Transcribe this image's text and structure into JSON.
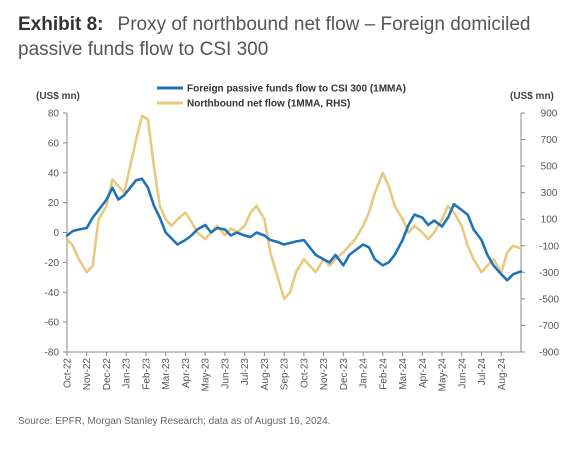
{
  "exhibit": {
    "label": "Exhibit 8:",
    "title": "Proxy of northbound net flow – Foreign domiciled passive funds flow to CSI 300"
  },
  "source": "Source: EPFR, Morgan Stanley Research; data as of August 16, 2024.",
  "colors": {
    "passive": "#1f73b7",
    "northbound": "#e8c97f",
    "axis": "#888888"
  },
  "chart_data": {
    "type": "line",
    "ylabel_left": "(US$ mn)",
    "ylabel_right": "(US$ mn)",
    "ylim_left": [
      -80,
      80
    ],
    "ylim_right": [
      -900,
      900
    ],
    "yticks_left": [
      80,
      60,
      40,
      20,
      0,
      -20,
      -40,
      -60,
      -80
    ],
    "yticks_right": [
      900,
      700,
      500,
      300,
      100,
      -100,
      -300,
      -500,
      -700,
      -900
    ],
    "xlim": [
      0,
      23
    ],
    "xticks": [
      "Oct-22",
      "Nov-22",
      "Dec-22",
      "Jan-23",
      "Feb-23",
      "Mar-23",
      "Apr-23",
      "May-23",
      "Jun-23",
      "Jul-23",
      "Aug-23",
      "Sep-23",
      "Oct-23",
      "Nov-23",
      "Dec-23",
      "Jan-24",
      "Feb-24",
      "Mar-24",
      "Apr-24",
      "May-24",
      "Jun-24",
      "Jul-24",
      "Aug-24"
    ],
    "legend": "top-center",
    "grid": false,
    "series": [
      {
        "name": "Foreign passive funds flow to CSI 300 (1MMA)",
        "axis": "left",
        "x": [
          0,
          0.3,
          0.6,
          1,
          1.3,
          1.6,
          2,
          2.3,
          2.6,
          2.9,
          3.2,
          3.5,
          3.8,
          4.1,
          4.4,
          4.7,
          5,
          5.3,
          5.6,
          6,
          6.3,
          6.6,
          7,
          7.3,
          7.6,
          8,
          8.3,
          8.6,
          9,
          9.3,
          9.6,
          10,
          10.3,
          10.6,
          11,
          11.3,
          11.6,
          12,
          12.3,
          12.6,
          13,
          13.3,
          13.6,
          14,
          14.3,
          14.6,
          15,
          15.3,
          15.6,
          16,
          16.3,
          16.6,
          17,
          17.3,
          17.6,
          18,
          18.3,
          18.6,
          19,
          19.3,
          19.6,
          20,
          20.3,
          20.6,
          21,
          21.3,
          21.6,
          22,
          22.3,
          22.6,
          23
        ],
        "values": [
          -2,
          1,
          2,
          3,
          10,
          15,
          22,
          30,
          22,
          25,
          30,
          35,
          36,
          30,
          18,
          10,
          0,
          -4,
          -8,
          -5,
          -2,
          2,
          5,
          0,
          3,
          2,
          -2,
          0,
          -2,
          -3,
          0,
          -2,
          -5,
          -6,
          -8,
          -7,
          -6,
          -5,
          -10,
          -15,
          -18,
          -20,
          -15,
          -22,
          -15,
          -12,
          -8,
          -10,
          -18,
          -22,
          -20,
          -15,
          -5,
          5,
          12,
          10,
          5,
          8,
          4,
          10,
          19,
          15,
          12,
          2,
          -5,
          -15,
          -22,
          -28,
          -32,
          -28,
          -26
        ]
      },
      {
        "name": "Northbound net flow (1MMA, RHS)",
        "axis": "right",
        "x": [
          0,
          0.3,
          0.6,
          1,
          1.3,
          1.6,
          2,
          2.3,
          2.6,
          2.9,
          3.2,
          3.5,
          3.8,
          4.1,
          4.4,
          4.7,
          5,
          5.3,
          5.6,
          6,
          6.3,
          6.6,
          7,
          7.3,
          7.6,
          8,
          8.3,
          8.6,
          9,
          9.3,
          9.6,
          10,
          10.3,
          10.6,
          11,
          11.3,
          11.6,
          12,
          12.3,
          12.6,
          13,
          13.3,
          13.6,
          14,
          14.3,
          14.6,
          15,
          15.3,
          15.6,
          16,
          16.3,
          16.6,
          17,
          17.3,
          17.6,
          18,
          18.3,
          18.6,
          19,
          19.3,
          19.6,
          20,
          20.3,
          20.6,
          21,
          21.3,
          21.6,
          22,
          22.3,
          22.6,
          23
        ],
        "values": [
          -50,
          -100,
          -200,
          -300,
          -250,
          100,
          200,
          400,
          350,
          300,
          500,
          700,
          880,
          850,
          500,
          200,
          100,
          50,
          100,
          150,
          80,
          0,
          -50,
          0,
          50,
          -20,
          30,
          0,
          50,
          150,
          200,
          100,
          -150,
          -300,
          -500,
          -450,
          -300,
          -200,
          -250,
          -300,
          -200,
          -250,
          -200,
          -150,
          -100,
          -50,
          50,
          150,
          300,
          450,
          350,
          200,
          100,
          0,
          50,
          0,
          -50,
          0,
          100,
          200,
          150,
          50,
          -100,
          -200,
          -300,
          -250,
          -200,
          -300,
          -150,
          -100,
          -120
        ]
      }
    ]
  }
}
